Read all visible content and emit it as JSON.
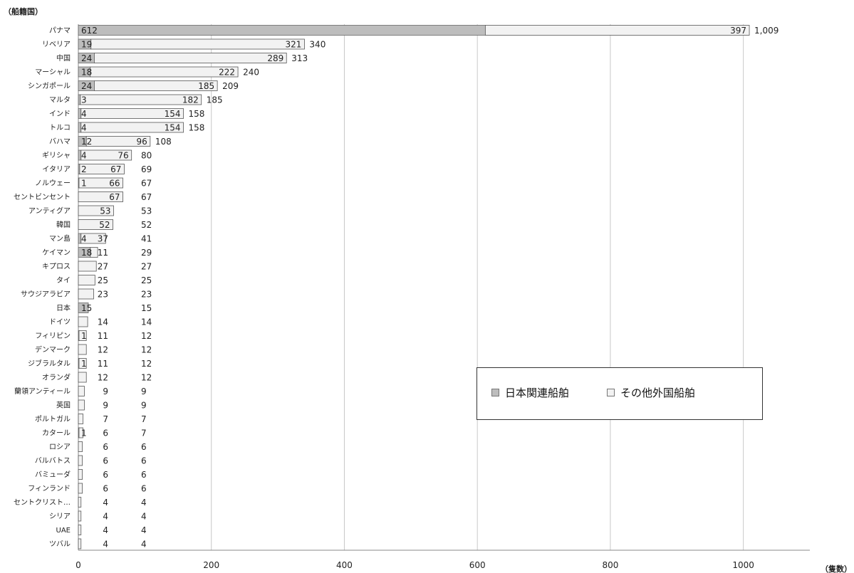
{
  "chart_data": {
    "type": "bar",
    "orientation": "horizontal",
    "stacked": true,
    "ylabel": "（船籍国）",
    "xlabel": "（隻数）",
    "xlim": [
      0,
      1100
    ],
    "xticks": [
      0,
      200,
      400,
      600,
      800,
      1000
    ],
    "grid": true,
    "legend_position": "right",
    "categories": [
      "パナマ",
      "リベリア",
      "中国",
      "マーシャル",
      "シンガポール",
      "マルタ",
      "インド",
      "トルコ",
      "バハマ",
      "ギリシャ",
      "イタリア",
      "ノルウェー",
      "セントビンセント",
      "アンティグア",
      "韓国",
      "マン島",
      "ケイマン",
      "キプロス",
      "タイ",
      "サウジアラビア",
      "日本",
      "ドイツ",
      "フィリピン",
      "デンマーク",
      "ジブラルタル",
      "オランダ",
      "蘭領アンティール",
      "英国",
      "ポルトガル",
      "カタール",
      "ロシア",
      "バルバトス",
      "バミューダ",
      "フィンランド",
      "セントクリスト…",
      "シリア",
      "UAE",
      "ツバル"
    ],
    "series": [
      {
        "name": "日本関連船舶",
        "color": "#bdbdbd",
        "values": [
          612,
          19,
          24,
          18,
          24,
          3,
          4,
          4,
          12,
          4,
          2,
          1,
          null,
          null,
          null,
          4,
          18,
          null,
          null,
          null,
          15,
          null,
          1,
          null,
          1,
          null,
          null,
          null,
          null,
          1,
          null,
          null,
          null,
          null,
          null,
          null,
          null,
          null
        ]
      },
      {
        "name": "その他外国船舶",
        "color": "#f2f2f2",
        "values": [
          397,
          321,
          289,
          222,
          185,
          182,
          154,
          154,
          96,
          76,
          67,
          66,
          67,
          53,
          52,
          37,
          11,
          27,
          25,
          23,
          null,
          14,
          11,
          12,
          11,
          12,
          9,
          9,
          7,
          6,
          6,
          6,
          6,
          6,
          4,
          4,
          4,
          4
        ]
      }
    ],
    "totals": [
      1009,
      340,
      313,
      240,
      209,
      185,
      158,
      158,
      108,
      80,
      69,
      67,
      67,
      53,
      52,
      41,
      29,
      27,
      25,
      23,
      15,
      14,
      12,
      12,
      12,
      12,
      9,
      9,
      7,
      7,
      6,
      6,
      6,
      6,
      4,
      4,
      4,
      4
    ]
  }
}
